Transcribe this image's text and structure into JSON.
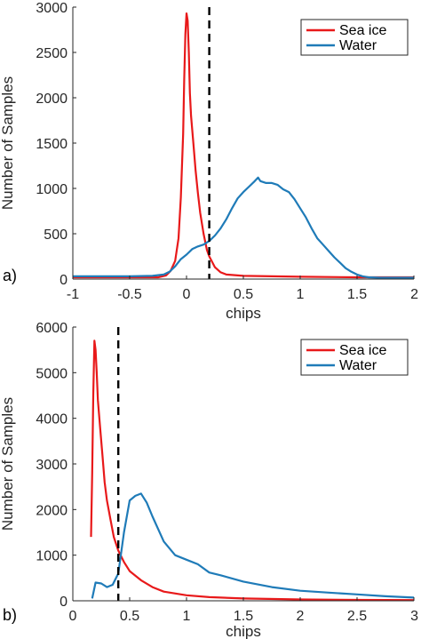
{
  "chart_data": [
    {
      "type": "line",
      "panel_label": "a)",
      "xlabel": "chips",
      "ylabel": "Number of Samples",
      "xlim": [
        -1,
        2
      ],
      "ylim": [
        0,
        3000
      ],
      "xticks": [
        -1,
        -0.5,
        0,
        0.5,
        1,
        1.5,
        2
      ],
      "xtick_labels": [
        "-1",
        "-0.5",
        "0",
        "0.5",
        "1",
        "1.5",
        "2"
      ],
      "yticks": [
        0,
        500,
        1000,
        1500,
        2000,
        2500,
        3000
      ],
      "ytick_labels": [
        "0",
        "500",
        "1000",
        "1500",
        "2000",
        "2500",
        "3000"
      ],
      "threshold_x": 0.2,
      "legend_position": "top-right",
      "series": [
        {
          "name": "Sea ice",
          "color": "#e8191a",
          "x": [
            -1.0,
            -0.5,
            -0.25,
            -0.18,
            -0.14,
            -0.1,
            -0.07,
            -0.05,
            -0.03,
            -0.02,
            -0.01,
            0.0,
            0.01,
            0.02,
            0.03,
            0.04,
            0.06,
            0.08,
            0.1,
            0.12,
            0.15,
            0.18,
            0.2,
            0.25,
            0.3,
            0.35,
            0.5,
            1.0,
            1.5,
            2.0
          ],
          "y": [
            20,
            20,
            20,
            40,
            90,
            200,
            450,
            900,
            1600,
            2200,
            2700,
            2930,
            2850,
            2500,
            2050,
            1800,
            1500,
            1200,
            950,
            730,
            500,
            320,
            250,
            130,
            75,
            50,
            35,
            25,
            20,
            20
          ]
        },
        {
          "name": "Water",
          "color": "#1f7bb8",
          "x": [
            -1.0,
            -0.5,
            -0.3,
            -0.2,
            -0.15,
            -0.1,
            -0.05,
            0.0,
            0.05,
            0.1,
            0.15,
            0.2,
            0.25,
            0.3,
            0.35,
            0.4,
            0.45,
            0.5,
            0.55,
            0.6,
            0.63,
            0.65,
            0.7,
            0.75,
            0.8,
            0.85,
            0.9,
            0.95,
            1.0,
            1.05,
            1.1,
            1.15,
            1.2,
            1.25,
            1.3,
            1.35,
            1.4,
            1.45,
            1.5,
            1.55,
            1.6,
            1.7,
            2.0
          ],
          "y": [
            30,
            30,
            35,
            50,
            80,
            140,
            220,
            270,
            330,
            360,
            380,
            420,
            480,
            560,
            660,
            780,
            890,
            960,
            1020,
            1080,
            1120,
            1080,
            1060,
            1060,
            1040,
            990,
            960,
            880,
            780,
            680,
            560,
            450,
            380,
            310,
            240,
            180,
            120,
            80,
            50,
            30,
            20,
            15,
            15
          ]
        }
      ]
    },
    {
      "type": "line",
      "panel_label": "b)",
      "xlabel": "chips",
      "ylabel": "Number of Samples",
      "xlim": [
        0,
        3
      ],
      "ylim": [
        0,
        6000
      ],
      "xticks": [
        0,
        0.5,
        1,
        1.5,
        2,
        2.5,
        3
      ],
      "xtick_labels": [
        "0",
        "0.5",
        "1",
        "1.5",
        "2",
        "2.5",
        "3"
      ],
      "yticks": [
        0,
        1000,
        2000,
        3000,
        4000,
        5000,
        6000
      ],
      "ytick_labels": [
        "0",
        "1000",
        "2000",
        "3000",
        "4000",
        "5000",
        "6000"
      ],
      "threshold_x": 0.4,
      "legend_position": "top-right",
      "series": [
        {
          "name": "Sea ice",
          "color": "#e8191a",
          "x": [
            0.16,
            0.17,
            0.18,
            0.19,
            0.2,
            0.21,
            0.22,
            0.24,
            0.26,
            0.28,
            0.3,
            0.33,
            0.36,
            0.4,
            0.45,
            0.5,
            0.6,
            0.7,
            0.8,
            1.0,
            1.2,
            1.5,
            2.0,
            2.5,
            3.0
          ],
          "y": [
            1400,
            2800,
            4500,
            5700,
            5500,
            5000,
            4400,
            3800,
            3200,
            2600,
            2200,
            1800,
            1400,
            1100,
            850,
            650,
            450,
            300,
            200,
            120,
            80,
            50,
            30,
            20,
            15
          ]
        },
        {
          "name": "Water",
          "color": "#1f7bb8",
          "x": [
            0.17,
            0.2,
            0.25,
            0.3,
            0.35,
            0.4,
            0.45,
            0.5,
            0.55,
            0.6,
            0.65,
            0.7,
            0.8,
            0.9,
            1.0,
            1.1,
            1.2,
            1.3,
            1.5,
            1.75,
            2.0,
            2.25,
            2.5,
            2.75,
            3.0
          ],
          "y": [
            50,
            400,
            380,
            300,
            350,
            600,
            1500,
            2200,
            2300,
            2350,
            2150,
            1850,
            1300,
            1000,
            900,
            800,
            620,
            560,
            420,
            300,
            220,
            180,
            140,
            100,
            70
          ]
        }
      ]
    }
  ]
}
